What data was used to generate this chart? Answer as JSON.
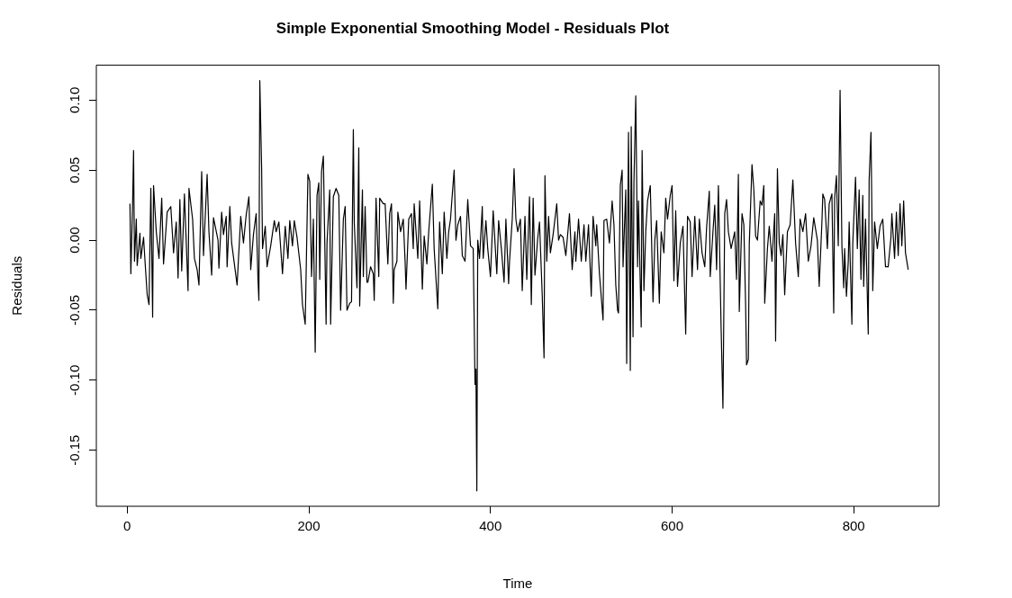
{
  "chart_data": {
    "type": "line",
    "title": "Simple Exponential Smoothing Model - Residuals Plot",
    "xlabel": "Time",
    "ylabel": "Residuals",
    "xlim": [
      -34,
      894
    ],
    "xticks": [
      0,
      200,
      400,
      600,
      800
    ],
    "ylim": [
      -0.19,
      0.125
    ],
    "yticks": [
      {
        "value": -0.15,
        "label": "-0.15"
      },
      {
        "value": -0.1,
        "label": "-0.10"
      },
      {
        "value": -0.05,
        "label": "-0.05"
      },
      {
        "value": 0,
        "label": "0.00"
      },
      {
        "value": 0.05,
        "label": "0.05"
      },
      {
        "value": 0.1,
        "label": "0.10"
      }
    ],
    "grid": false,
    "legend": false,
    "marker": "none",
    "line_style": "solid",
    "series": [
      {
        "color": "#000000",
        "x": [
          3,
          4,
          6,
          7,
          8,
          10,
          11,
          14,
          15,
          18,
          20,
          22,
          24,
          26,
          28,
          29,
          32,
          35,
          38,
          40,
          44,
          48,
          51,
          54,
          56,
          58,
          60,
          63,
          67,
          68,
          72,
          74,
          77,
          79,
          82,
          84,
          88,
          90,
          93,
          95,
          100,
          101,
          104,
          106,
          109,
          110,
          113,
          115,
          121,
          125,
          128,
          131,
          134,
          136,
          139,
          142,
          144,
          145,
          146,
          148,
          149,
          152,
          154,
          158,
          162,
          164,
          167,
          171,
          174,
          177,
          179,
          182,
          184,
          187,
          191,
          193,
          196,
          199,
          201,
          203,
          205,
          207,
          209,
          211,
          212,
          214,
          216,
          219,
          220,
          223,
          224,
          227,
          230,
          233,
          235,
          238,
          240,
          242,
          245,
          247,
          249,
          250,
          253,
          255,
          256,
          259,
          260,
          262,
          264,
          265,
          268,
          271,
          272,
          274,
          277,
          278,
          282,
          284,
          287,
          289,
          291,
          293,
          294,
          297,
          298,
          301,
          304,
          306,
          307,
          310,
          313,
          315,
          316,
          320,
          322,
          325,
          327,
          330,
          332,
          336,
          338,
          342,
          344,
          347,
          349,
          352,
          354,
          356,
          358,
          360,
          362,
          364,
          367,
          369,
          372,
          375,
          378,
          381,
          383,
          384,
          385,
          386,
          388,
          391,
          392,
          395,
          397,
          400,
          403,
          407,
          409,
          412,
          415,
          417,
          420,
          421,
          424,
          426,
          428,
          430,
          433,
          435,
          438,
          440,
          443,
          445,
          447,
          449,
          452,
          454,
          457,
          459,
          460,
          462,
          464,
          466,
          469,
          473,
          475,
          477,
          480,
          483,
          487,
          490,
          493,
          494,
          497,
          500,
          503,
          505,
          508,
          511,
          513,
          516,
          517,
          520,
          521,
          524,
          525,
          528,
          531,
          534,
          536,
          538,
          540,
          541,
          543,
          545,
          546,
          549,
          550,
          552,
          554,
          555,
          557,
          558,
          560,
          562,
          563,
          566,
          567,
          569,
          571,
          573,
          576,
          579,
          581,
          583,
          586,
          588,
          591,
          593,
          595,
          598,
          600,
          602,
          604,
          606,
          609,
          612,
          615,
          617,
          620,
          622,
          625,
          628,
          630,
          633,
          636,
          638,
          641,
          642,
          645,
          647,
          649,
          651,
          654,
          656,
          658,
          660,
          662,
          665,
          669,
          671,
          673,
          674,
          677,
          679,
          681,
          682,
          684,
          685,
          688,
          690,
          692,
          694,
          697,
          699,
          701,
          702,
          705,
          707,
          709,
          710,
          713,
          714,
          716,
          718,
          720,
          722,
          724,
          727,
          730,
          733,
          734,
          736,
          739,
          741,
          744,
          747,
          750,
          753,
          756,
          760,
          762,
          765,
          766,
          768,
          771,
          773,
          776,
          778,
          779,
          781,
          783,
          784,
          785,
          787,
          789,
          790,
          792,
          794,
          795,
          798,
          799,
          802,
          804,
          806,
          808,
          810,
          811,
          813,
          816,
          817,
          819,
          821,
          823,
          826,
          829,
          832,
          835,
          838,
          841,
          842,
          845,
          847,
          849,
          851,
          853,
          855,
          857,
          860
        ],
        "values": [
          0.026,
          -0.024,
          0.028,
          0.064,
          -0.015,
          0.015,
          -0.018,
          0.005,
          -0.013,
          0.002,
          -0.019,
          -0.039,
          -0.046,
          0.037,
          -0.055,
          0.039,
          0.006,
          -0.013,
          0.03,
          -0.017,
          0.02,
          0.024,
          -0.009,
          0.013,
          -0.027,
          0.029,
          -0.022,
          0.033,
          -0.036,
          0.037,
          0.015,
          -0.013,
          -0.021,
          -0.032,
          0.049,
          -0.011,
          0.047,
          0.006,
          -0.025,
          0.016,
          0,
          -0.02,
          0.02,
          0.004,
          0.017,
          -0.019,
          0.024,
          -0.002,
          -0.032,
          0.017,
          -0.002,
          0.018,
          0.031,
          -0.021,
          0.004,
          0.019,
          -0.028,
          -0.043,
          0.114,
          0.052,
          -0.006,
          0.01,
          -0.019,
          -0.004,
          0.014,
          0.006,
          0.013,
          -0.024,
          0.01,
          -0.013,
          0.014,
          -0.004,
          0.014,
          0.002,
          -0.021,
          -0.046,
          -0.06,
          0.047,
          0.042,
          -0.026,
          0.015,
          -0.08,
          0.032,
          0.041,
          -0.028,
          0.049,
          0.06,
          -0.06,
          -0.002,
          0.036,
          -0.06,
          0.031,
          0.037,
          0.032,
          -0.05,
          0.015,
          0.024,
          -0.05,
          -0.045,
          -0.044,
          0.079,
          0.013,
          -0.034,
          0.066,
          -0.047,
          0.036,
          -0.026,
          0.024,
          -0.03,
          -0.03,
          -0.019,
          -0.024,
          -0.043,
          0.03,
          -0.026,
          0.03,
          0.026,
          0.026,
          -0.017,
          0.019,
          0.026,
          -0.045,
          -0.021,
          -0.015,
          0.02,
          0.006,
          0.015,
          -0.015,
          -0.035,
          0.015,
          0.019,
          -0.006,
          0.026,
          -0.013,
          0.028,
          -0.035,
          0.003,
          -0.017,
          0.006,
          0.04,
          -0.006,
          -0.049,
          0.013,
          -0.024,
          0.02,
          -0.013,
          0.006,
          0.015,
          0.033,
          0.05,
          0,
          0.011,
          0.017,
          -0.011,
          -0.015,
          0.029,
          -0.004,
          -0.006,
          -0.103,
          -0.092,
          -0.179,
          0,
          -0.013,
          0.024,
          -0.013,
          0.014,
          -0.006,
          -0.026,
          0.021,
          -0.024,
          0.014,
          -0.006,
          -0.03,
          0.015,
          -0.031,
          -0.015,
          0.015,
          0.051,
          0.015,
          0.006,
          0.015,
          -0.036,
          0.017,
          -0.028,
          0.031,
          -0.046,
          0.03,
          -0.025,
          0.001,
          0.013,
          -0.039,
          -0.084,
          0.046,
          -0.015,
          0.017,
          -0.009,
          0.004,
          0.026,
          0,
          0.004,
          0.002,
          -0.011,
          0.019,
          -0.021,
          0.006,
          -0.015,
          0.015,
          -0.015,
          0.011,
          -0.015,
          0.011,
          -0.04,
          0.017,
          -0.004,
          0.011,
          -0.024,
          -0.032,
          -0.057,
          0.014,
          0.015,
          -0.002,
          0.028,
          0.011,
          -0.032,
          -0.05,
          -0.052,
          0.039,
          0.05,
          -0.019,
          0.036,
          -0.088,
          0.077,
          -0.093,
          0.081,
          -0.069,
          0.041,
          0.103,
          -0.019,
          0.028,
          -0.062,
          0.064,
          -0.036,
          0.006,
          0.028,
          0.039,
          -0.044,
          0,
          0.014,
          -0.045,
          0.006,
          -0.009,
          0.03,
          0.015,
          0.032,
          0.039,
          -0.029,
          0.021,
          -0.033,
          -0.002,
          0.01,
          -0.067,
          0.017,
          0.013,
          -0.026,
          0.017,
          -0.021,
          0.015,
          -0.009,
          -0.019,
          0.009,
          0.035,
          -0.026,
          0.006,
          0.025,
          -0.021,
          0.039,
          -0.063,
          -0.12,
          0.019,
          0.029,
          0.006,
          -0.006,
          0.006,
          -0.028,
          0.047,
          -0.051,
          0.019,
          0.011,
          -0.047,
          -0.089,
          -0.085,
          -0.003,
          0.054,
          0.036,
          0.003,
          0,
          0.028,
          0.025,
          0.039,
          -0.045,
          -0.006,
          0.01,
          -0.006,
          -0.015,
          0.019,
          -0.072,
          0.051,
          -0.002,
          -0.011,
          0.004,
          -0.039,
          0.006,
          0.011,
          0.043,
          0.028,
          -0.002,
          -0.026,
          0.015,
          0.006,
          0.019,
          -0.015,
          -0.004,
          0.016,
          0,
          -0.033,
          0.013,
          0.033,
          0.029,
          -0.006,
          0.026,
          0.033,
          -0.052,
          0.03,
          0.046,
          -0.004,
          0.051,
          0.107,
          -0.004,
          -0.034,
          -0.006,
          -0.04,
          -0.015,
          0.013,
          -0.06,
          -0.002,
          0.045,
          -0.006,
          0.036,
          -0.028,
          0.032,
          -0.033,
          0.015,
          -0.067,
          0.043,
          0.077,
          -0.036,
          0.013,
          -0.006,
          0.01,
          0.015,
          -0.019,
          -0.019,
          0.002,
          0.019,
          -0.013,
          0.02,
          -0.011,
          0.026,
          -0.004,
          0.028,
          -0.009,
          -0.021
        ]
      }
    ]
  }
}
